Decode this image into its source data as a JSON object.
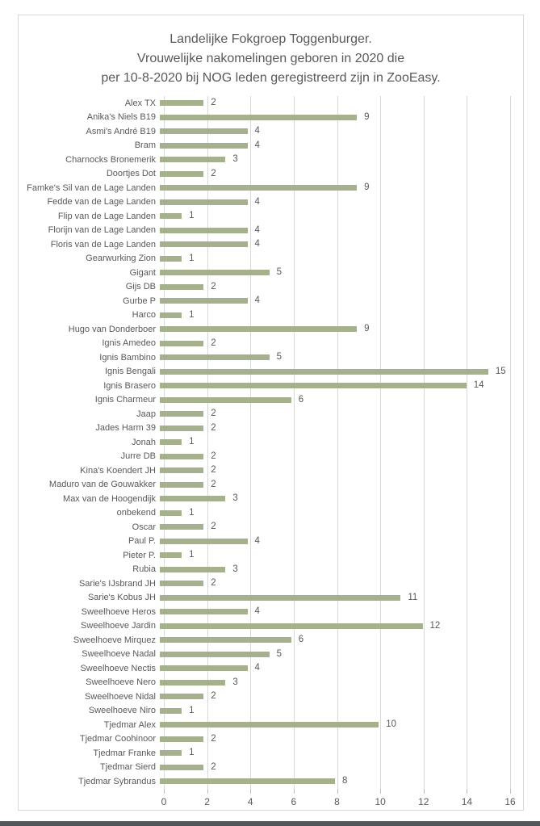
{
  "chart_data": {
    "type": "bar",
    "orientation": "horizontal",
    "title": "Landelijke Fokgroep Toggenburger. Vrouwelijke nakomelingen geboren in 2020 die per 10-8-2020 bij NOG leden geregistreerd zijn in ZooEasy.",
    "title_lines": [
      "Landelijke Fokgroep Toggenburger.",
      "Vrouwelijke nakomelingen geboren in 2020 die",
      "per 10-8-2020 bij NOG leden geregistreerd zijn in ZooEasy."
    ],
    "categories": [
      "Alex TX",
      "Anika's Niels B19",
      "Asmi's André B19",
      "Bram",
      "Charnocks Bronemerik",
      "Doortjes Dot",
      "Famke's Sil van de Lage Landen",
      "Fedde van de Lage Landen",
      "Flip van de Lage Landen",
      "Florijn van de Lage Landen",
      "Floris van de Lage Landen",
      "Gearwurking Zion",
      "Gigant",
      "Gijs DB",
      "Gurbe P",
      "Harco",
      "Hugo van Donderboer",
      "Ignis Amedeo",
      "Ignis Bambino",
      "Ignis Bengali",
      "Ignis Brasero",
      "Ignis Charmeur",
      "Jaap",
      "Jades Harm 39",
      "Jonah",
      "Jurre DB",
      "Kina's Koendert JH",
      "Maduro van de Gouwakker",
      "Max van de Hoogendijk",
      "onbekend",
      "Oscar",
      "Paul P.",
      "Pieter P.",
      "Rubia",
      "Sarie's IJsbrand JH",
      "Sarie's Kobus JH",
      "Sweelhoeve Heros",
      "Sweelhoeve Jardin",
      "Sweelhoeve Mirquez",
      "Sweelhoeve Nadal",
      "Sweelhoeve Nectis",
      "Sweelhoeve Nero",
      "Sweelhoeve Nidal",
      "Sweelhoeve Niro",
      "Tjedmar Alex",
      "Tjedmar Coohinoor",
      "Tjedmar Franke",
      "Tjedmar Sierd",
      "Tjedmar Sybrandus"
    ],
    "values": [
      2,
      9,
      4,
      4,
      3,
      2,
      9,
      4,
      1,
      4,
      4,
      1,
      5,
      2,
      4,
      1,
      9,
      2,
      5,
      15,
      14,
      6,
      2,
      2,
      1,
      2,
      2,
      2,
      3,
      1,
      2,
      4,
      1,
      3,
      2,
      11,
      4,
      12,
      6,
      5,
      4,
      3,
      2,
      1,
      10,
      2,
      1,
      2,
      8
    ],
    "xlabel": "",
    "ylabel": "",
    "xlim": [
      0,
      16
    ],
    "x_ticks": [
      0,
      2,
      4,
      6,
      8,
      10,
      12,
      14,
      16
    ],
    "grid": true,
    "legend": false,
    "data_labels": true,
    "bar_color": "#a4b18c",
    "text_color": "#595959",
    "gridline_color": "#d9d9d9"
  },
  "page": {
    "bottom_bar_color": "#53565c"
  }
}
